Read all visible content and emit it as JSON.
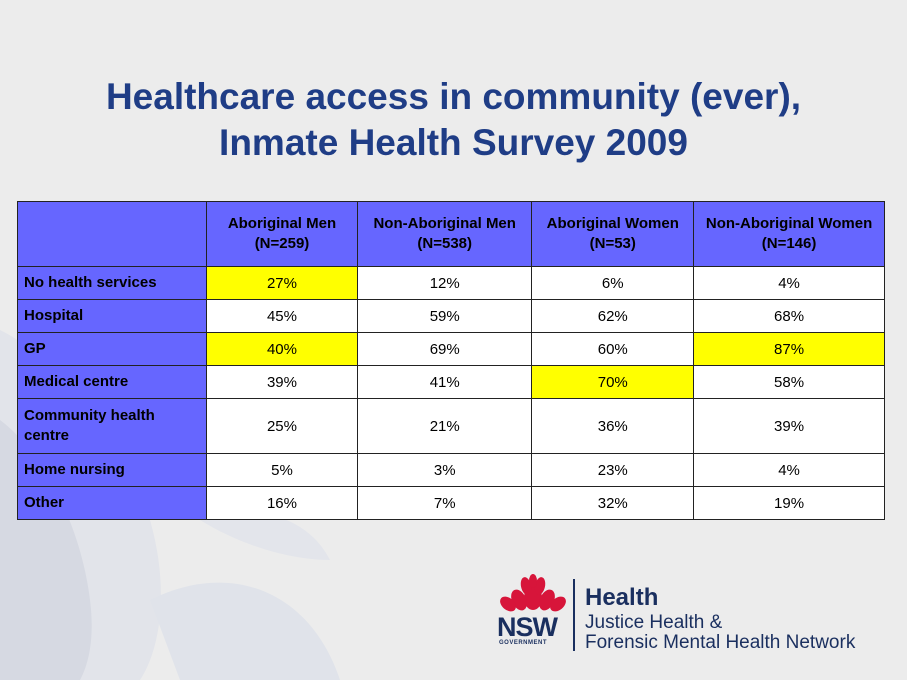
{
  "title": {
    "line1": "Healthcare access in community (ever),",
    "line2": "Inmate Health Survey 2009"
  },
  "table": {
    "corner": "",
    "columns": [
      "Aboriginal Men (N=259)",
      "Non-Aboriginal Men (N=538)",
      "Aboriginal Women (N=53)",
      "Non-Aboriginal Women (N=146)"
    ],
    "rows": [
      {
        "label": "No health services",
        "values": [
          "27%",
          "12%",
          "6%",
          "4%"
        ],
        "highlight": [
          true,
          false,
          false,
          false
        ]
      },
      {
        "label": "Hospital",
        "values": [
          "45%",
          "59%",
          "62%",
          "68%"
        ],
        "highlight": [
          false,
          false,
          false,
          false
        ]
      },
      {
        "label": "GP",
        "values": [
          "40%",
          "69%",
          "60%",
          "87%"
        ],
        "highlight": [
          true,
          false,
          false,
          true
        ]
      },
      {
        "label": "Medical centre",
        "values": [
          "39%",
          "41%",
          "70%",
          "58%"
        ],
        "highlight": [
          false,
          false,
          true,
          false
        ]
      },
      {
        "label": "Community health centre",
        "values": [
          "25%",
          "21%",
          "36%",
          "39%"
        ],
        "highlight": [
          false,
          false,
          false,
          false
        ]
      },
      {
        "label": "Home nursing",
        "values": [
          "5%",
          "3%",
          "23%",
          "4%"
        ],
        "highlight": [
          false,
          false,
          false,
          false
        ]
      },
      {
        "label": "Other",
        "values": [
          "16%",
          "7%",
          "32%",
          "19%"
        ],
        "highlight": [
          false,
          false,
          false,
          false
        ]
      }
    ],
    "colors": {
      "header_bg": "#6666ff",
      "highlight": "#ffff00",
      "cell_bg": "#ffffff"
    }
  },
  "logo": {
    "nsw": "NSW",
    "government": "GOVERNMENT",
    "health": "Health",
    "line2": "Justice Health &",
    "line3": "Forensic Mental Health Network",
    "waratah_color": "#d7153a",
    "text_color": "#1a2f5f"
  },
  "colors": {
    "title": "#1f3d86",
    "background": "#ececec"
  }
}
